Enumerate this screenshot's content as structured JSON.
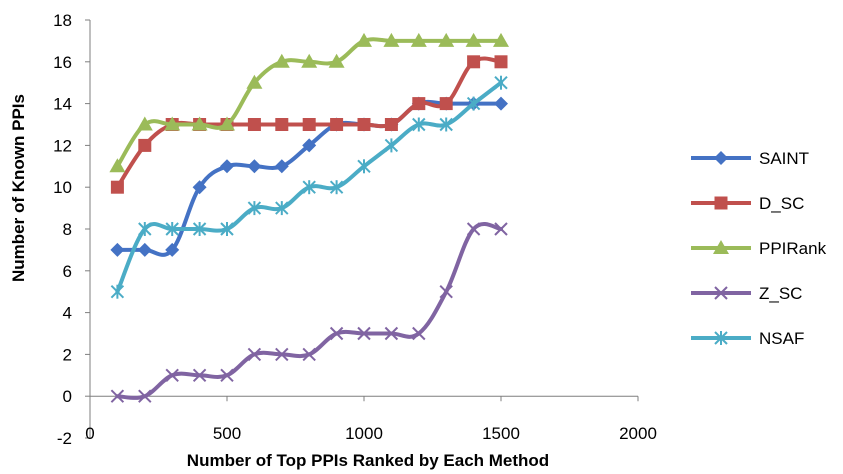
{
  "chart_data": {
    "type": "line",
    "title": "",
    "xlabel": "Number of Top PPIs Ranked by Each Method",
    "ylabel": "Number of Known PPIs",
    "xlim": [
      0,
      2000
    ],
    "ylim": [
      -2,
      18
    ],
    "xticks": [
      "0",
      "500",
      "1000",
      "1500",
      "2000"
    ],
    "yticks": [
      "-2",
      "0",
      "2",
      "4",
      "6",
      "8",
      "10",
      "12",
      "14",
      "16",
      "18"
    ],
    "grid": false,
    "legend_position": "right",
    "x": [
      100,
      200,
      300,
      400,
      500,
      600,
      700,
      800,
      900,
      1000,
      1100,
      1200,
      1300,
      1400,
      1500
    ],
    "series": [
      {
        "name": "SAINT",
        "color": "#4472C4",
        "marker": "diamond",
        "values": [
          7,
          7,
          7,
          10,
          11,
          11,
          11,
          12,
          13,
          13,
          13,
          14,
          14,
          14,
          14
        ]
      },
      {
        "name": "D_SC",
        "color": "#C0504D",
        "marker": "square",
        "values": [
          10,
          12,
          13,
          13,
          13,
          13,
          13,
          13,
          13,
          13,
          13,
          14,
          14,
          16,
          16
        ]
      },
      {
        "name": "PPIRank",
        "color": "#9BBB59",
        "marker": "triangle",
        "values": [
          11,
          13,
          13,
          13,
          13,
          15,
          16,
          16,
          16,
          17,
          17,
          17,
          17,
          17,
          17
        ]
      },
      {
        "name": "Z_SC",
        "color": "#8064A2",
        "marker": "x",
        "values": [
          0,
          0,
          1,
          1,
          1,
          2,
          2,
          2,
          3,
          3,
          3,
          3,
          5,
          8,
          8
        ]
      },
      {
        "name": "NSAF",
        "color": "#4BACC6",
        "marker": "star",
        "values": [
          5,
          8,
          8,
          8,
          8,
          9,
          9,
          10,
          10,
          11,
          12,
          13,
          13,
          14,
          15
        ]
      }
    ]
  }
}
